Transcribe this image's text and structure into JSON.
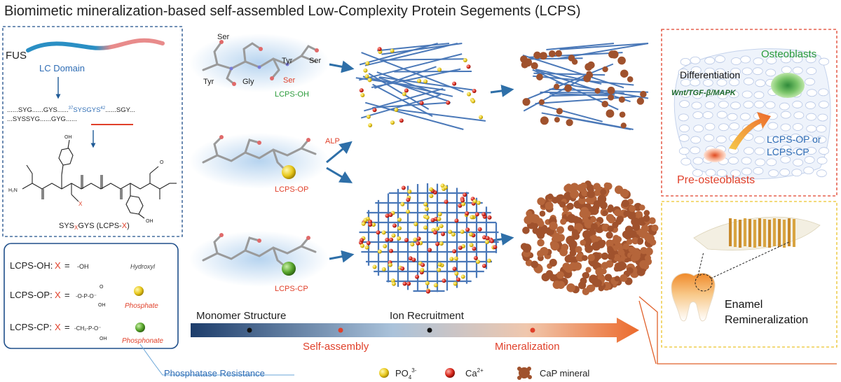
{
  "title": "Biomimetic mineralization-based self-assembled Low-Complexity Protein Segements (LCPS)",
  "left_panel": {
    "fus": "FUS",
    "lc_domain": "LC Domain",
    "seq_line1_a": "......SYG......GYS......",
    "seq_sup1": "37",
    "seq_highlight": "SYSGYS",
    "seq_sup2": "42",
    "seq_line1_b": "......SGY...",
    "seq_line2": "...SYSSYG......GYG......",
    "atom_oh_top": "OH",
    "atom_h2n": "H₂N",
    "atom_h": "H",
    "atom_o": "O",
    "atom_oh": "OH",
    "atom_x": "X",
    "peptide_label_a": "SYS",
    "peptide_label_x": "X",
    "peptide_label_b": "GYS (LCPS-",
    "peptide_label_c": "X",
    "peptide_label_d": ")"
  },
  "legend_box": {
    "rows": [
      {
        "name": "LCPS-OH:",
        "x": "X",
        "eq": "=",
        "group": "-OH",
        "desc": "Hydroxyl"
      },
      {
        "name": "LCPS-OP:",
        "x": "X",
        "eq": "=",
        "group": "-O-P-O⁻",
        "desc": "Phosphate"
      },
      {
        "name": "LCPS-CP:",
        "x": "X",
        "eq": "=",
        "group": "-CH₂-P-O⁻",
        "desc": "Phosphonate"
      }
    ],
    "sub_oh": "OH",
    "sub_o": "O",
    "phosphatase": "Phosphatase Resistance"
  },
  "molecules": {
    "ser1": "Ser",
    "tyr1": "Tyr",
    "ser2": "Ser",
    "tyr2": "Tyr",
    "gly": "Gly",
    "ser_red": "Ser",
    "lcps_oh": "LCPS-OH",
    "lcps_op": "LCPS-OP",
    "lcps_cp": "LCPS-CP",
    "alp": "ALP"
  },
  "bottom_bar": {
    "stage1": "Monomer Structure",
    "stage2": "Self-assembly",
    "stage3": "Ion Recruitment",
    "stage4": "Mineralization"
  },
  "bottom_legend": {
    "po4": "PO",
    "po4_sub": "4",
    "po4_sup": "3-",
    "ca": "Ca",
    "ca_sup": "2+",
    "cap": "CaP mineral"
  },
  "right_top": {
    "osteoblasts": "Osteoblasts",
    "differentiation": "Differentiation",
    "pathway": "Wnt/TGF-β/MAPK",
    "lcps_op_or": "LCPS-OP or",
    "lcps_cp": "LCPS-CP",
    "pre_osteoblasts": "Pre-osteoblasts"
  },
  "right_bottom": {
    "enamel": "Enamel",
    "remineralization": "Remineralization"
  },
  "colors": {
    "blue_text": "#2f6db5",
    "red_text": "#e0402a",
    "green_text": "#2a9b3a",
    "dark_blue": "#1d3d6b",
    "orange": "#ec6a2c",
    "fiber": "#4a78b8",
    "mineral": "#a0522d"
  }
}
